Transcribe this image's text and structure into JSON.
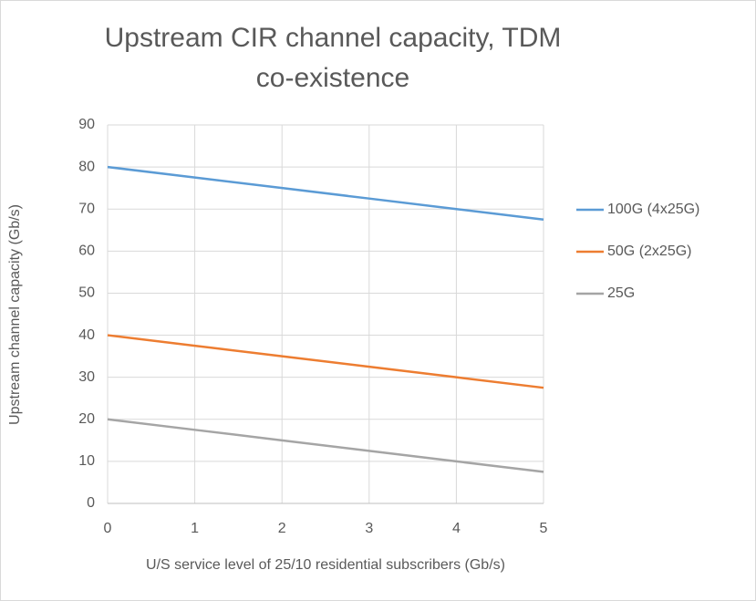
{
  "chart_data": {
    "type": "line",
    "title": "Upstream CIR channel capacity, TDM co-existence",
    "x_label": "U/S service level of 25/10 residential subscribers (Gb/s)",
    "y_label": "Upstream channel capacity (Gb/s)",
    "x": [
      0,
      1,
      2,
      3,
      4,
      5
    ],
    "series": [
      {
        "name": "100G (4x25G)",
        "color": "#5b9bd5",
        "values": [
          80,
          77.5,
          75,
          72.5,
          70,
          67.5
        ]
      },
      {
        "name": "50G (2x25G)",
        "color": "#ed7d31",
        "values": [
          40,
          37.5,
          35,
          32.5,
          30,
          27.5
        ]
      },
      {
        "name": "25G",
        "color": "#a5a5a5",
        "values": [
          20,
          17.5,
          15,
          12.5,
          10,
          7.5
        ]
      }
    ],
    "xlim": [
      0,
      5
    ],
    "xticks": [
      0,
      1,
      2,
      3,
      4,
      5
    ],
    "ylim": [
      0,
      90
    ],
    "yticks": [
      0,
      10,
      20,
      30,
      40,
      50,
      60,
      70,
      80,
      90
    ],
    "grid": true,
    "legend": "right"
  }
}
